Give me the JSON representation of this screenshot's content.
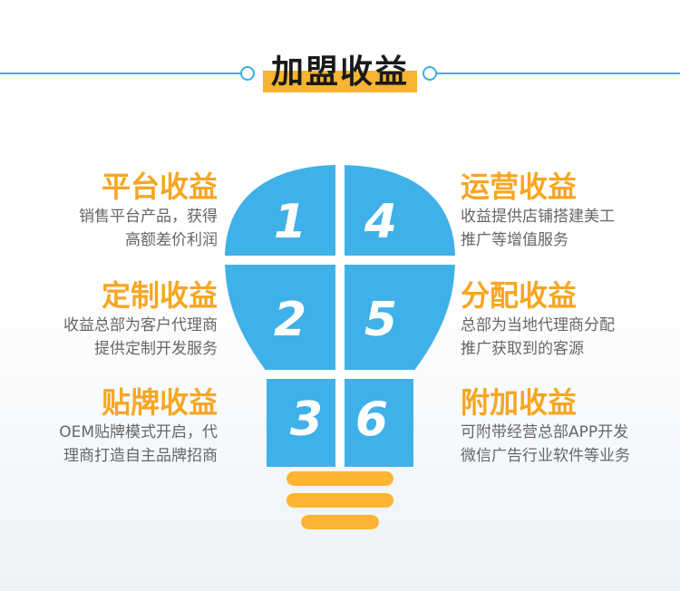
{
  "title": "加盟收益",
  "colors": {
    "accent": "#3aaee6",
    "orange": "#f6a623",
    "bulb": "#3fb1e8",
    "base": "#fbb532"
  },
  "left": [
    {
      "heading": "平台收益",
      "line1": "销售平台产品，获得",
      "line2": "高额差价利润"
    },
    {
      "heading": "定制收益",
      "line1": "收益总部为客户代理商",
      "line2": "提供定制开发服务"
    },
    {
      "heading": "贴牌收益",
      "line1": "OEM贴牌模式开启，代",
      "line2": "理商打造自主品牌招商"
    }
  ],
  "right": [
    {
      "heading": "运营收益",
      "line1": "收益提供店铺搭建美工",
      "line2": "推广等增值服务"
    },
    {
      "heading": "分配收益",
      "line1": "总部为当地代理商分配",
      "line2": "推广获取到的客源"
    },
    {
      "heading": "附加收益",
      "line1": "可附带经营总部APP开发",
      "line2": "微信广告行业软件等业务"
    }
  ],
  "bulb": {
    "numbers": [
      "1",
      "2",
      "3",
      "4",
      "5",
      "6"
    ]
  }
}
